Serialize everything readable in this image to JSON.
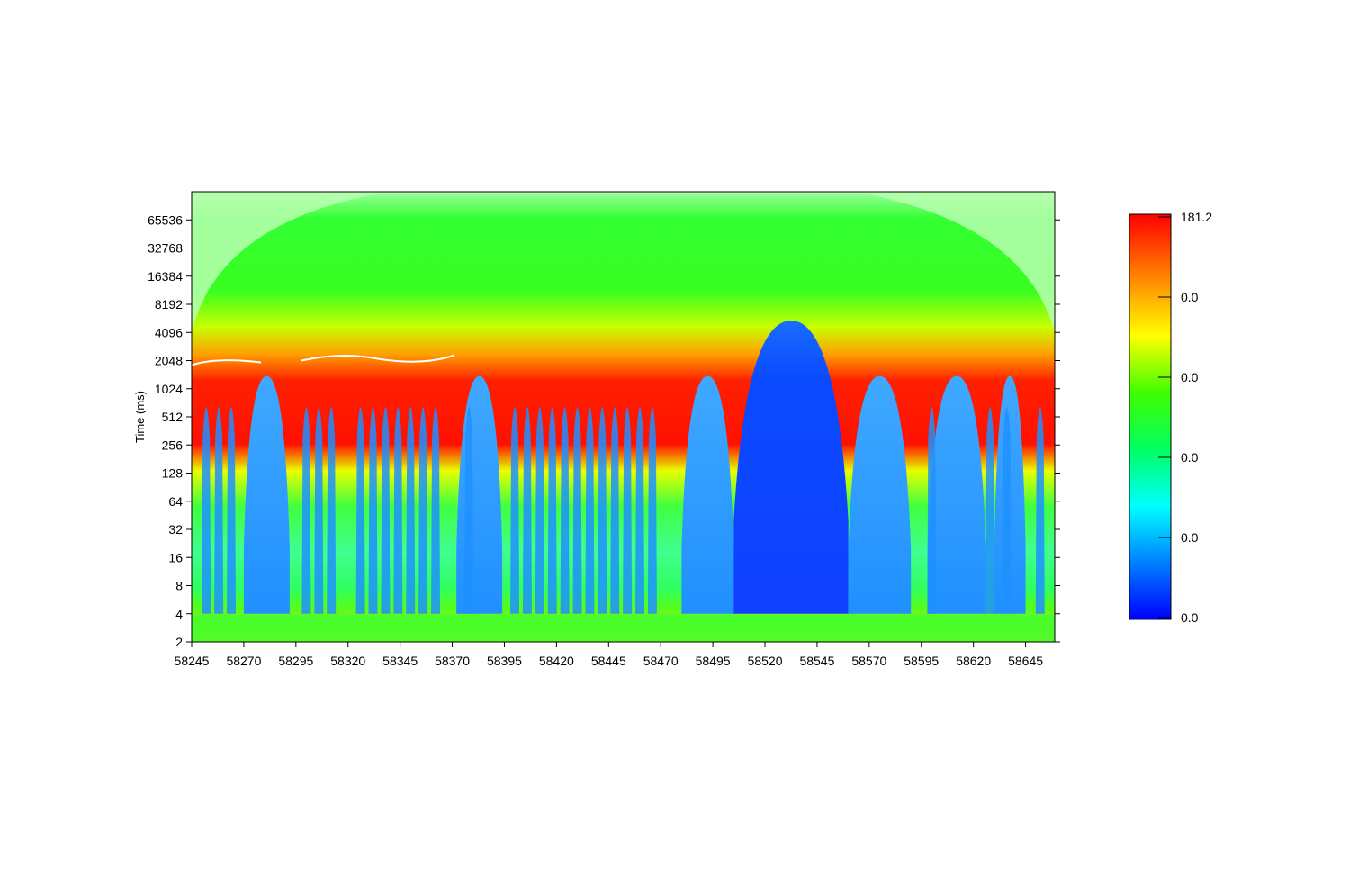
{
  "chart_data": {
    "type": "heatmap",
    "title": "",
    "xlabel": "",
    "ylabel": "Time (ms)",
    "x_ticks": [
      "58245",
      "58270",
      "58295",
      "58320",
      "58345",
      "58370",
      "58395",
      "58420",
      "58445",
      "58470",
      "58495",
      "58520",
      "58545",
      "58570",
      "58595",
      "58620",
      "58645"
    ],
    "x_range": [
      58245,
      58659
    ],
    "y_scale": "log2",
    "y_ticks": [
      "2",
      "4",
      "8",
      "16",
      "32",
      "64",
      "128",
      "256",
      "512",
      "1024",
      "2048",
      "4096",
      "8192",
      "16384",
      "32768",
      "65536"
    ],
    "y_range": [
      2,
      131072
    ],
    "colorbar": {
      "labels": [
        "181.2",
        "0.0",
        "0.0",
        "0.0",
        "0.0",
        "0.0"
      ],
      "colors": [
        "#0000ff",
        "#00a0ff",
        "#00ffff",
        "#00ff40",
        "#80ff00",
        "#ffff00",
        "#ff8000",
        "#ff0000"
      ]
    },
    "notes": {
      "low_power_regions_x": [
        [
          58270,
          58292
        ],
        [
          58372,
          58394
        ],
        [
          58480,
          58505
        ],
        [
          58505,
          58560
        ],
        [
          58560,
          58590
        ],
        [
          58598,
          58626
        ],
        [
          58630,
          58645
        ]
      ],
      "high_power_band_period_ms": [
        256,
        4096
      ]
    }
  }
}
